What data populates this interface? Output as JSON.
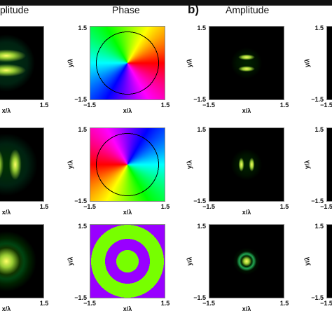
{
  "titles": {
    "left_amplitude": "plitude",
    "phase": "Phase",
    "panel_b": "b)",
    "right_amplitude": "Amplitude"
  },
  "axis": {
    "x_label": "x/λ",
    "y_label": "y/λ",
    "min": "−1.5",
    "max": "1.5"
  }
}
